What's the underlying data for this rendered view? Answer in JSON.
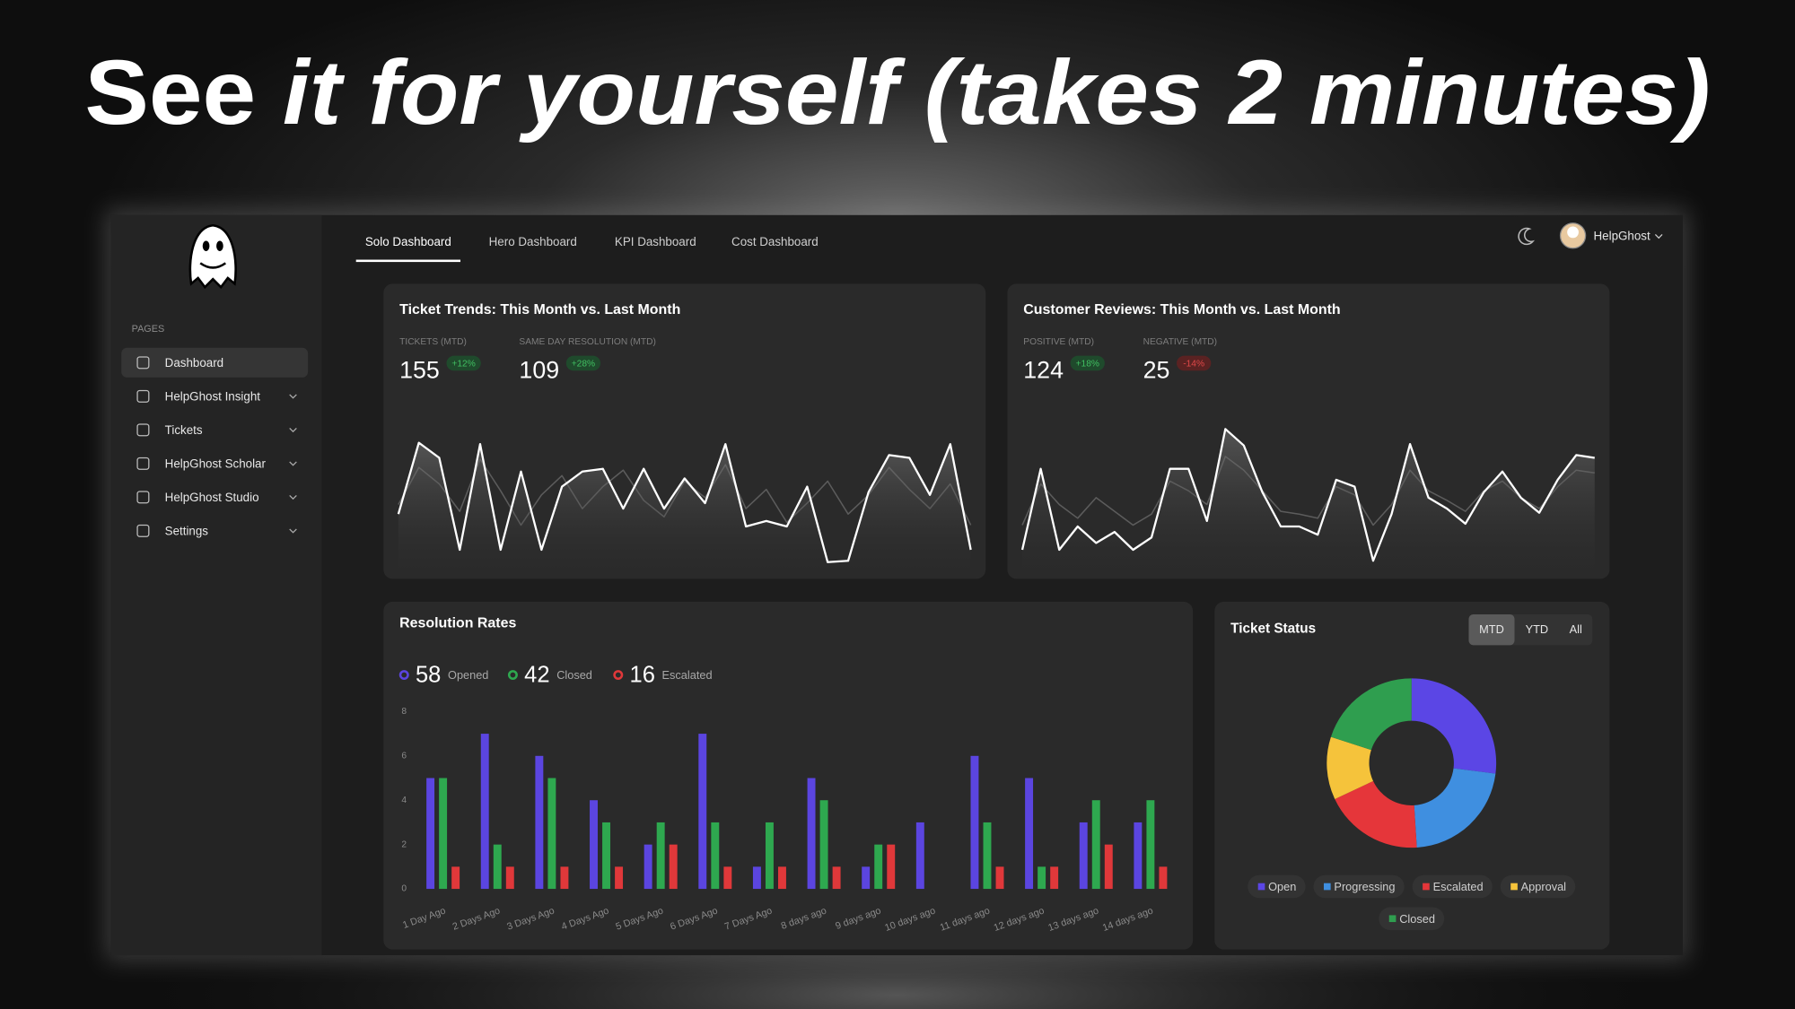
{
  "headline": {
    "plain": "See",
    "italic": "it for yourself (takes 2 minutes)"
  },
  "sidebar": {
    "section": "PAGES",
    "items": [
      "Dashboard",
      "HelpGhost Insight",
      "Tickets",
      "HelpGhost Scholar",
      "HelpGhost Studio",
      "Settings"
    ]
  },
  "tabs": [
    "Solo Dashboard",
    "Hero Dashboard",
    "KPI Dashboard",
    "Cost Dashboard"
  ],
  "user": "HelpGhost",
  "chart_data": [
    {
      "type": "line",
      "title": "Ticket Trends: This Month vs. Last Month",
      "stats": [
        {
          "label": "TICKETS (MTD)",
          "value": 155,
          "change": "+12%"
        },
        {
          "label": "SAME DAY RESOLUTION (MTD)",
          "value": 109,
          "change": "+28%"
        }
      ],
      "ylim": [
        0,
        100
      ],
      "series": [
        {
          "color": "#ffffff",
          "fill": true,
          "values": [
            38,
            90,
            79,
            12,
            89,
            12,
            69,
            12,
            58,
            69,
            71,
            42,
            71,
            42,
            64,
            46,
            89,
            29,
            33,
            29,
            58,
            3,
            4,
            54,
            81,
            79,
            52,
            89,
            12
          ]
        },
        {
          "color": "#5c5c5c",
          "fill": false,
          "values": [
            45,
            72,
            60,
            40,
            78,
            55,
            30,
            52,
            66,
            42,
            58,
            70,
            48,
            36,
            62,
            50,
            74,
            42,
            56,
            32,
            46,
            62,
            38,
            52,
            72,
            56,
            42,
            60,
            30
          ]
        }
      ]
    },
    {
      "type": "line",
      "title": "Customer Reviews: This Month vs. Last Month",
      "stats": [
        {
          "label": "POSITIVE (MTD)",
          "value": 124,
          "change": "+18%"
        },
        {
          "label": "NEGATIVE (MTD)",
          "value": 25,
          "change": "-14%"
        }
      ],
      "ylim": [
        0,
        100
      ],
      "series": [
        {
          "color": "#ffffff",
          "fill": true,
          "values": [
            12,
            71,
            12,
            29,
            17,
            25,
            12,
            21,
            71,
            71,
            33,
            100,
            88,
            54,
            29,
            29,
            23,
            63,
            58,
            4,
            38,
            89,
            50,
            42,
            31,
            54,
            69,
            50,
            39,
            63,
            81,
            79
          ]
        },
        {
          "color": "#5c5c5c",
          "fill": false,
          "values": [
            30,
            60,
            45,
            35,
            50,
            40,
            30,
            38,
            62,
            55,
            45,
            80,
            70,
            55,
            40,
            38,
            35,
            58,
            52,
            30,
            45,
            70,
            55,
            48,
            40,
            55,
            62,
            50,
            42,
            58,
            70,
            68
          ]
        }
      ]
    },
    {
      "type": "bar",
      "title": "Resolution Rates",
      "categories": [
        "1 Day Ago",
        "2 Days Ago",
        "3 Days Ago",
        "4 Days Ago",
        "5 Days Ago",
        "6 Days Ago",
        "7 Days Ago",
        "8 days ago",
        "9 days ago",
        "10 days ago",
        "11 days ago",
        "12 days ago",
        "13 days ago",
        "14 days ago"
      ],
      "series": [
        {
          "name": "Opened",
          "total": 58,
          "color": "#5b45e0",
          "values": [
            5,
            7,
            6,
            4,
            2,
            7,
            1,
            5,
            1,
            3,
            6,
            5,
            3,
            3
          ]
        },
        {
          "name": "Closed",
          "total": 42,
          "color": "#2ea84f",
          "values": [
            5,
            2,
            5,
            3,
            3,
            3,
            3,
            4,
            2,
            0,
            3,
            1,
            4,
            4
          ]
        },
        {
          "name": "Escalated",
          "total": 16,
          "color": "#e0383a",
          "values": [
            1,
            1,
            1,
            1,
            2,
            1,
            1,
            1,
            2,
            0,
            1,
            1,
            2,
            1
          ]
        }
      ],
      "ylim": [
        0,
        8
      ],
      "yticks": [
        0,
        2,
        4,
        6,
        8
      ]
    },
    {
      "type": "donut",
      "title": "Ticket Status",
      "filters": [
        "MTD",
        "YTD",
        "All"
      ],
      "active_filter": 0,
      "categories": [
        "Open",
        "Progressing",
        "Escalated",
        "Approval",
        "Closed"
      ],
      "values": [
        27,
        22,
        19,
        12,
        20
      ],
      "colors": [
        "#5b46e5",
        "#3f8fe0",
        "#e5363a",
        "#f5c33b",
        "#2f9e4f"
      ]
    }
  ]
}
